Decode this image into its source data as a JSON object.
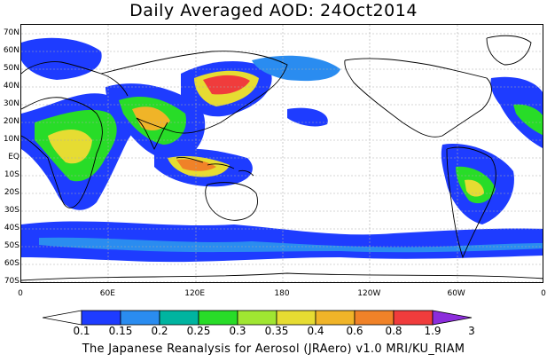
{
  "title": "Daily Averaged AOD: 24Oct2014",
  "footer": "The Japanese Reanalysis for Aerosol (JRAero) v1.0 MRI/KU_RIAM",
  "map": {
    "lat_labels": [
      "70N",
      "60N",
      "50N",
      "40N",
      "30N",
      "20N",
      "10N",
      "EQ",
      "10S",
      "20S",
      "30S",
      "40S",
      "50S",
      "60S",
      "70S"
    ],
    "lon_labels": [
      "0",
      "60E",
      "120E",
      "180",
      "120W",
      "60W",
      "0"
    ]
  },
  "colorbar": {
    "labels": [
      "0.1",
      "0.15",
      "0.2",
      "0.25",
      "0.3",
      "0.35",
      "0.4",
      "0.6",
      "0.8",
      "1.9",
      "3"
    ],
    "colors": [
      "#ffffff",
      "#1e3cff",
      "#2a8cf0",
      "#00b4a0",
      "#28dc28",
      "#a0e632",
      "#e6dc32",
      "#f0b428",
      "#f08228",
      "#f03c3c",
      "#8c2ddc"
    ]
  }
}
